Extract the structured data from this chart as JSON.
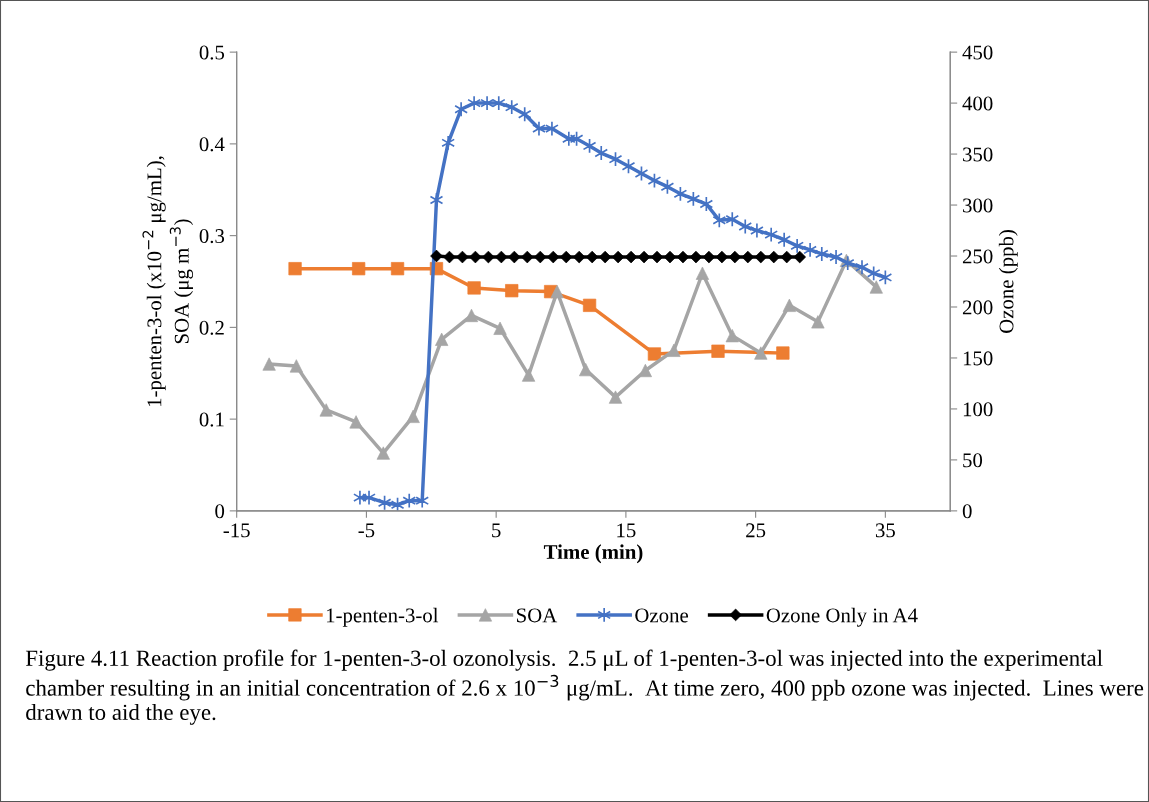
{
  "chart_data": {
    "type": "line",
    "xlabel": "Time (min)",
    "ylabel": "1-penten-3-ol (x10$^{−2}$ μg/mL),\nSOA (μg m$^{−3}$)",
    "y2label": "Ozone (ppb)",
    "xlim": [
      -15,
      40
    ],
    "xticks": [
      -15,
      -5,
      5,
      15,
      25,
      35
    ],
    "ylim": [
      0,
      0.5
    ],
    "yticks": [
      0,
      0.1,
      0.2,
      0.3,
      0.4,
      0.5
    ],
    "y2lim": [
      0,
      450
    ],
    "y2ticks": [
      0,
      50,
      100,
      150,
      200,
      250,
      300,
      350,
      400,
      450
    ],
    "grid": false,
    "legend": "bottom",
    "line_style": "solid",
    "series": [
      {
        "name": "1-penten-3-ol",
        "color": "#ed7d31",
        "marker": "square",
        "x": [
          -10.5,
          -5.6,
          -2.6,
          0.4,
          3.3,
          6.2,
          9.2,
          12.2,
          17.2,
          22.1,
          27.1
        ],
        "values": [
          0.264,
          0.264,
          0.264,
          0.264,
          0.243,
          0.24,
          0.239,
          0.224,
          0.171,
          0.174,
          0.172
        ]
      },
      {
        "name": "SOA",
        "color": "#a5a5a5",
        "marker": "triangle",
        "x": [
          -12.5,
          -10.4,
          -8.1,
          -5.8,
          -3.7,
          -1.4,
          0.8,
          3.1,
          5.3,
          7.5,
          9.7,
          11.9,
          14.2,
          16.5,
          18.7,
          20.9,
          23.2,
          25.4,
          27.6,
          29.8,
          32.0,
          34.3
        ],
        "values": [
          0.16,
          0.158,
          0.11,
          0.097,
          0.063,
          0.103,
          0.187,
          0.213,
          0.199,
          0.148,
          0.239,
          0.154,
          0.124,
          0.153,
          0.175,
          0.259,
          0.191,
          0.172,
          0.224,
          0.206,
          0.273,
          0.244
        ]
      },
      {
        "name": "Ozone",
        "color": "#4472c4",
        "marker": "cross",
        "axis": "y2",
        "x": [
          -5.5,
          -4.8,
          -3.6,
          -2.6,
          -1.7,
          -0.7,
          0.4,
          1.3,
          2.3,
          3.3,
          4.3,
          5.2,
          6.2,
          7.2,
          8.3,
          9.3,
          10.6,
          11.2,
          12.2,
          13.1,
          14.2,
          15.2,
          16.2,
          17.2,
          18.2,
          19.2,
          20.2,
          21.2,
          22.2,
          23.2,
          24.2,
          25.1,
          26.2,
          27.2,
          28.2,
          29.2,
          30.1,
          31.2,
          32.1,
          33.2,
          34.1,
          35.0
        ],
        "values": [
          13,
          13,
          8,
          6,
          10,
          10,
          305,
          361,
          394,
          400,
          400,
          400,
          396,
          389,
          375,
          375,
          365,
          365,
          358,
          351,
          345,
          338,
          331,
          324,
          318,
          311,
          306,
          301,
          285,
          286,
          279,
          275,
          271,
          266,
          260,
          256,
          252,
          249,
          243,
          239,
          233,
          229
        ]
      },
      {
        "name": "Ozone Only in A4",
        "color": "#000000",
        "marker": "diamond",
        "axis": "y2",
        "x": [
          0.4,
          1.4,
          2.4,
          3.4,
          4.4,
          5.4,
          6.4,
          7.4,
          8.4,
          9.4,
          10.4,
          11.4,
          12.4,
          13.4,
          14.4,
          15.4,
          16.4,
          17.4,
          18.4,
          19.4,
          20.4,
          21.4,
          22.4,
          23.4,
          24.4,
          25.4,
          26.4,
          27.4,
          28.4
        ],
        "values": [
          250,
          249,
          249,
          249,
          249,
          249,
          249,
          249,
          249,
          249,
          249,
          249,
          249,
          249,
          249,
          249,
          249,
          249,
          249,
          249,
          249,
          249,
          249,
          249,
          249,
          249,
          249,
          249,
          249
        ]
      }
    ],
    "annotations": [
      "Figure 4.11 Reaction profile for 1-penten-3-ol ozonolysis.  2.5 μL of 1-penten-3-ol was injected into the experimental chamber resulting in an initial concentration of 2.6 x 10$^{−3}$ μg/mL.  At time zero, 400 ppb ozone was injected.  Lines were drawn to aid the eye."
    ]
  }
}
